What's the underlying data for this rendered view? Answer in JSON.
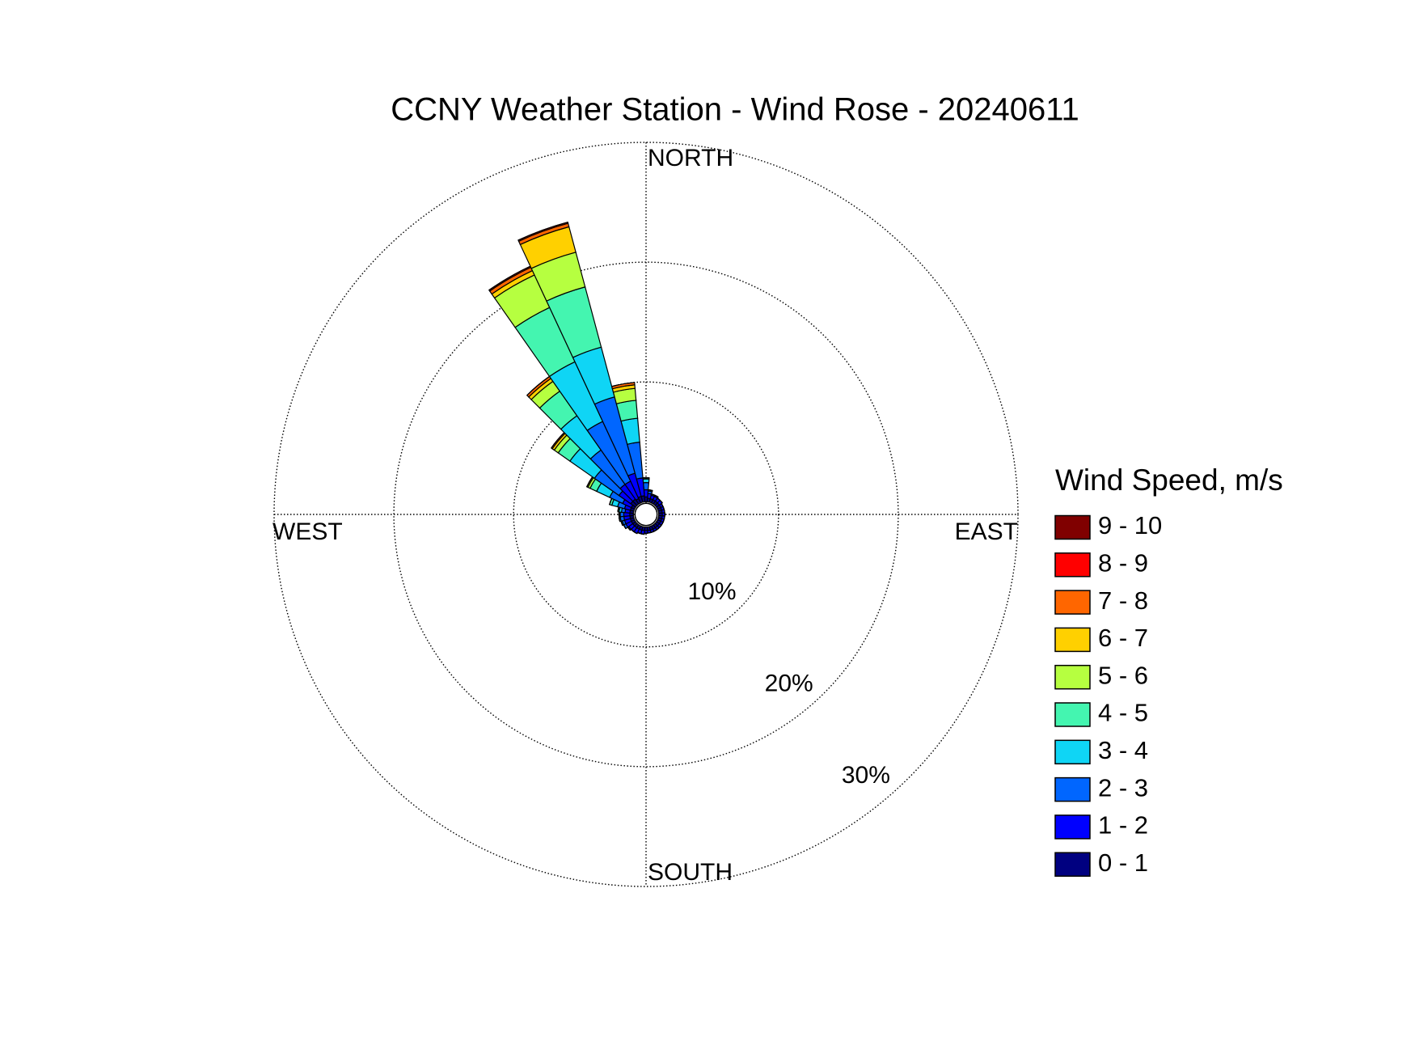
{
  "chart_data": {
    "type": "windrose",
    "title": "CCNY Weather Station - Wind Rose - 20240611",
    "legend_title": "Wind Speed, m/s",
    "compass": {
      "north": "NORTH",
      "east": "EAST",
      "south": "SOUTH",
      "west": "WEST"
    },
    "x": [
      0,
      10,
      20,
      30,
      40,
      50,
      60,
      70,
      80,
      90,
      100,
      110,
      120,
      130,
      140,
      150,
      160,
      170,
      180,
      190,
      200,
      210,
      220,
      230,
      240,
      250,
      260,
      270,
      280,
      290,
      300,
      310,
      320,
      330,
      340,
      350
    ],
    "rlim": [
      0,
      30
    ],
    "rticks": [
      {
        "value": 10,
        "label": "10%"
      },
      {
        "value": 20,
        "label": "20%"
      },
      {
        "value": 30,
        "label": "30%"
      }
    ],
    "grid": true,
    "legend_position": "right",
    "series": [
      {
        "name": "0 - 1",
        "color": "#000080",
        "values": [
          0.4,
          0.3,
          0.3,
          0.3,
          0.3,
          0.3,
          0.3,
          0.3,
          0.3,
          0.3,
          0.3,
          0.3,
          0.3,
          0.3,
          0.3,
          0.3,
          0.3,
          0.3,
          0.3,
          0.3,
          0.3,
          0.3,
          0.3,
          0.3,
          0.3,
          0.3,
          0.3,
          0.3,
          0.3,
          0.3,
          0.3,
          0.5,
          0.5,
          0.4,
          0.5,
          0.5
        ]
      },
      {
        "name": "1 - 2",
        "color": "#0000ff",
        "values": [
          0.6,
          0.4,
          0.3,
          0.3,
          0.3,
          0.3,
          0.2,
          0.2,
          0.2,
          0.2,
          0.2,
          0.2,
          0.2,
          0.2,
          0.2,
          0.2,
          0.2,
          0.2,
          0.2,
          0.3,
          0.3,
          0.4,
          0.4,
          0.4,
          0.5,
          0.5,
          0.5,
          0.5,
          0.4,
          0.5,
          0.8,
          1.2,
          1.5,
          1.6,
          2.0,
          1.5
        ]
      },
      {
        "name": "2 - 3",
        "color": "#0066ff",
        "values": [
          0.6,
          0.2,
          0.1,
          0.1,
          0,
          0,
          0,
          0,
          0,
          0,
          0,
          0,
          0,
          0,
          0,
          0,
          0,
          0,
          0,
          0,
          0,
          0,
          0,
          0.1,
          0.2,
          0.2,
          0.3,
          0.3,
          0.3,
          0.6,
          1.2,
          2.5,
          3.5,
          5.5,
          6.6,
          3.0
        ]
      },
      {
        "name": "3 - 4",
        "color": "#0fd5f5",
        "values": [
          0.3,
          0.1,
          0,
          0,
          0,
          0,
          0,
          0,
          0,
          0,
          0,
          0,
          0,
          0,
          0,
          0,
          0,
          0,
          0,
          0,
          0,
          0,
          0,
          0,
          0,
          0.1,
          0.1,
          0.1,
          0.2,
          0.5,
          1.2,
          2.5,
          3.5,
          5.5,
          4.3,
          2.0
        ]
      },
      {
        "name": "4 - 5",
        "color": "#44f5b0",
        "values": [
          0.1,
          0,
          0,
          0,
          0,
          0,
          0,
          0,
          0,
          0,
          0,
          0,
          0,
          0,
          0,
          0,
          0,
          0,
          0,
          0,
          0,
          0,
          0,
          0,
          0,
          0,
          0,
          0,
          0.1,
          0.2,
          0.6,
          1.2,
          2.5,
          5.0,
          5.2,
          1.5
        ]
      },
      {
        "name": "5 - 6",
        "color": "#b6ff40",
        "values": [
          0,
          0,
          0,
          0,
          0,
          0,
          0,
          0,
          0,
          0,
          0,
          0,
          0,
          0,
          0,
          0,
          0,
          0,
          0,
          0,
          0,
          0,
          0,
          0,
          0,
          0,
          0,
          0,
          0,
          0,
          0.2,
          0.4,
          1.0,
          3.0,
          3.0,
          1.0
        ]
      },
      {
        "name": "6 - 7",
        "color": "#ffd000",
        "values": [
          0,
          0,
          0,
          0,
          0,
          0,
          0,
          0,
          0,
          0,
          0,
          0,
          0,
          0,
          0,
          0,
          0,
          0,
          0,
          0,
          0,
          0,
          0,
          0,
          0,
          0,
          0,
          0,
          0,
          0,
          0.1,
          0.2,
          0.3,
          0.4,
          2.2,
          0.3
        ]
      },
      {
        "name": "7 - 8",
        "color": "#ff6600",
        "values": [
          0,
          0,
          0,
          0,
          0,
          0,
          0,
          0,
          0,
          0,
          0,
          0,
          0,
          0,
          0,
          0,
          0,
          0,
          0,
          0,
          0,
          0,
          0,
          0,
          0,
          0,
          0,
          0,
          0,
          0,
          0,
          0.1,
          0.2,
          0.3,
          0.3,
          0.2
        ]
      },
      {
        "name": "8 - 9",
        "color": "#ff0000",
        "values": [
          0,
          0,
          0,
          0,
          0,
          0,
          0,
          0,
          0,
          0,
          0,
          0,
          0,
          0,
          0,
          0,
          0,
          0,
          0,
          0,
          0,
          0,
          0,
          0,
          0,
          0,
          0,
          0,
          0,
          0,
          0,
          0,
          0,
          0.1,
          0.1,
          0
        ]
      },
      {
        "name": "9 - 10",
        "color": "#800000",
        "values": [
          0,
          0,
          0,
          0,
          0,
          0,
          0,
          0,
          0,
          0,
          0,
          0,
          0,
          0,
          0,
          0,
          0,
          0,
          0,
          0,
          0,
          0,
          0,
          0,
          0,
          0,
          0,
          0,
          0,
          0,
          0,
          0,
          0,
          0,
          0,
          0
        ]
      }
    ]
  }
}
